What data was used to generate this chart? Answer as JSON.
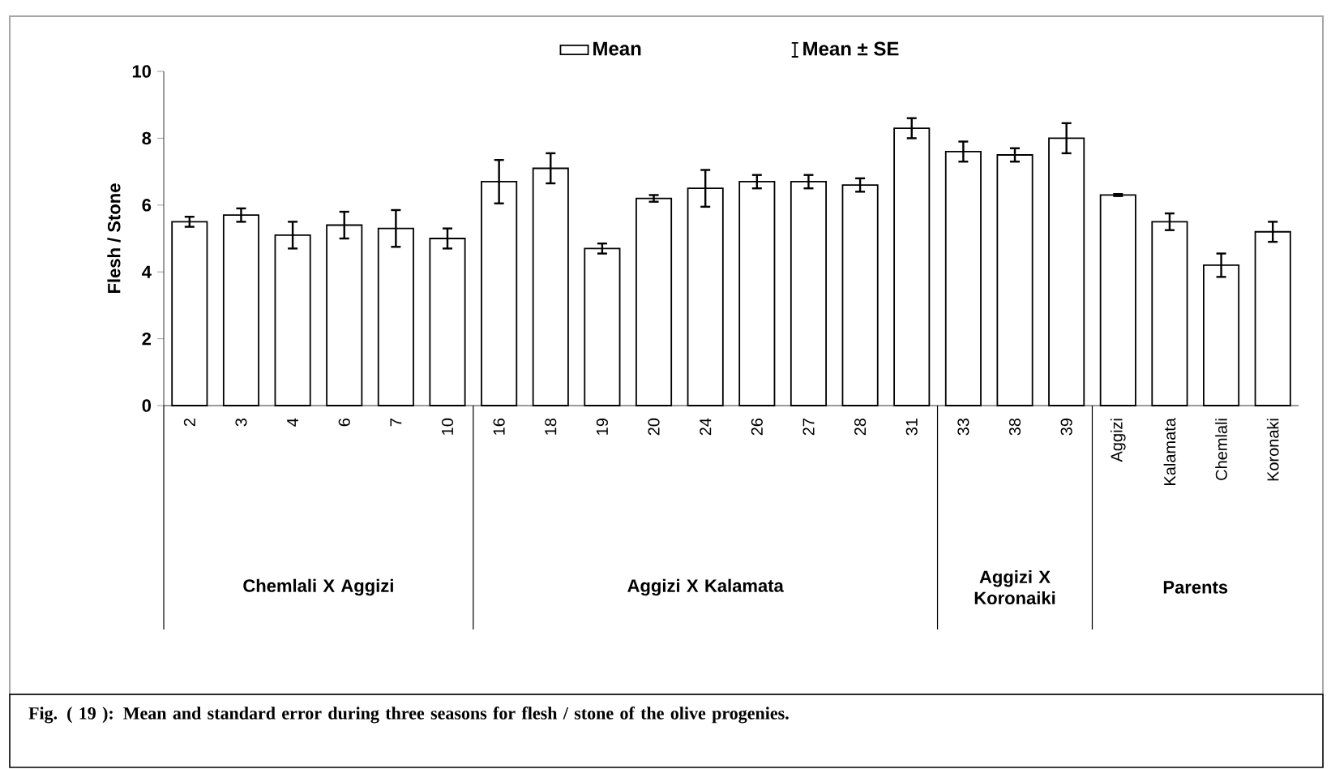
{
  "chart_data": {
    "type": "bar",
    "ylabel": "Flesh / Stone",
    "categories": [
      "2",
      "3",
      "4",
      "6",
      "7",
      "10",
      "16",
      "18",
      "19",
      "20",
      "24",
      "26",
      "27",
      "28",
      "31",
      "33",
      "38",
      "39",
      "Aggizi",
      "Kalamata",
      "Chemlali",
      "Koronaki"
    ],
    "series": [
      {
        "name": "Mean",
        "color": "#ffffff",
        "values": [
          5.5,
          5.7,
          5.1,
          5.4,
          5.3,
          5.0,
          6.7,
          7.1,
          4.7,
          6.2,
          6.5,
          6.7,
          6.7,
          6.6,
          8.3,
          7.6,
          7.5,
          8.0,
          6.3,
          5.5,
          4.2,
          5.2
        ],
        "errors": [
          0.15,
          0.2,
          0.4,
          0.4,
          0.55,
          0.3,
          0.65,
          0.45,
          0.15,
          0.1,
          0.55,
          0.2,
          0.2,
          0.2,
          0.3,
          0.3,
          0.2,
          0.45,
          0.03,
          0.25,
          0.35,
          0.3
        ]
      }
    ],
    "ylim": [
      0,
      10
    ],
    "yticks": [
      0,
      2,
      4,
      6,
      8,
      10
    ],
    "legend": "top",
    "annotations": [
      "Mean ± SE",
      "Chemlali X Aggizi",
      "Aggizi X Kalamata",
      "Aggizi X Koronaiki",
      "Parents",
      "Fig. ( 19 ): Mean and standard error during three seasons for flesh / stone of the olive progenies."
    ]
  }
}
